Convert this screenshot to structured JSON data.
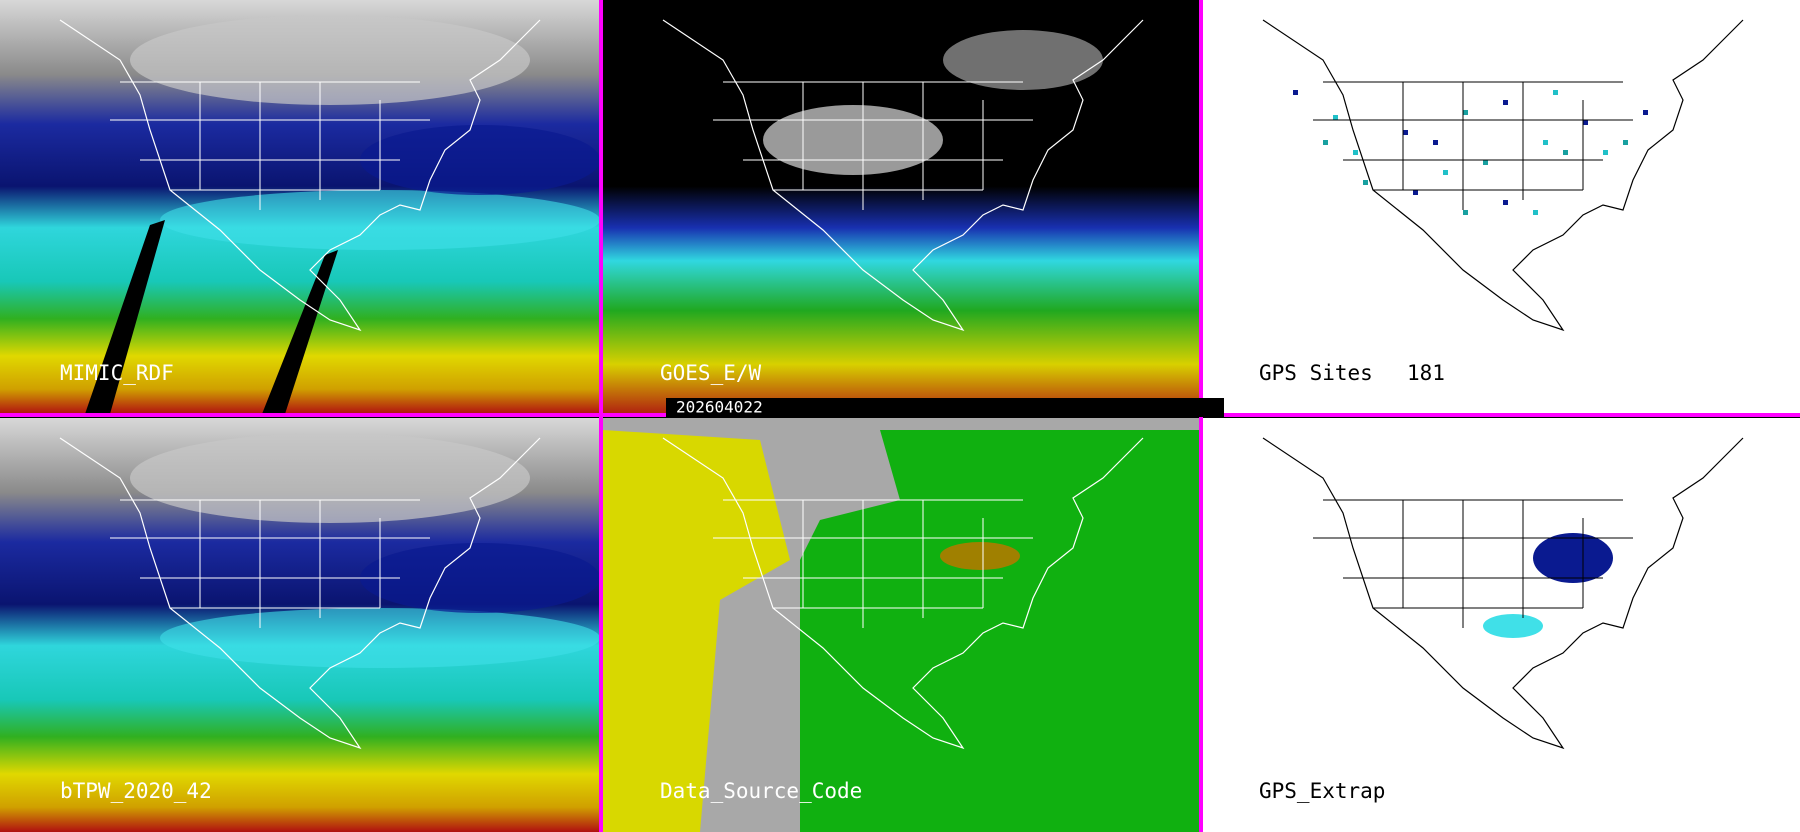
{
  "panels": [
    {
      "label": "MIMIC_RDF"
    },
    {
      "label": "GOES_E/W"
    },
    {
      "label": "GPS Sites",
      "count": 181
    },
    {
      "label": "bTPW_2020_42"
    },
    {
      "label": "Data_Source_Code"
    },
    {
      "label": "GPS_Extrap"
    }
  ],
  "timestamp": "202604022"
}
